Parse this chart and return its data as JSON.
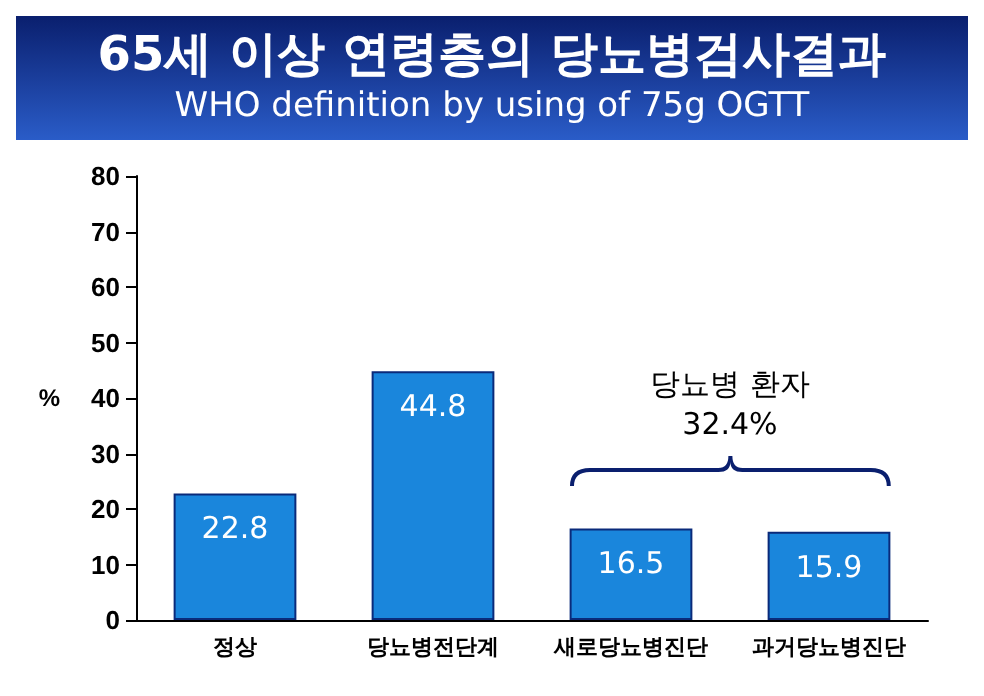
{
  "chart_data": {
    "type": "bar",
    "title": "65세 이상 연령층의 당뇨병검사결과",
    "subtitle": "WHO definition by using of 75g OGTT",
    "ylabel": "%",
    "categories": [
      "정상",
      "당뇨병전단계",
      "새로당뇨병진단",
      "과거당뇨병진단"
    ],
    "values": [
      22.8,
      44.8,
      16.5,
      15.9
    ],
    "color": "#1a86dc",
    "ylim": [
      0,
      80
    ],
    "yticks": [
      0,
      10,
      20,
      30,
      40,
      50,
      60,
      70,
      80
    ],
    "grid": false,
    "data_labels": true,
    "annotations": [
      "당뇨병 환자",
      "32.4%"
    ]
  }
}
